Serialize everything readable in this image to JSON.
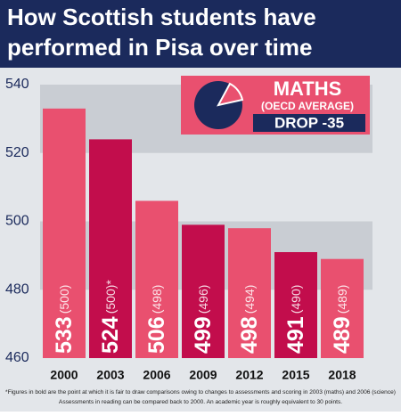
{
  "chart_data": {
    "type": "bar",
    "title": [
      "How Scottish students have",
      "performed in Pisa over time"
    ],
    "legend": {
      "subject": "MATHS",
      "note": "(OECD AVERAGE)",
      "change": "DROP -35"
    },
    "categories": [
      "2000",
      "2003",
      "2006",
      "2009",
      "2012",
      "2015",
      "2018"
    ],
    "values": [
      533,
      524,
      506,
      499,
      498,
      491,
      489
    ],
    "oecd_labels": [
      "(500)",
      "(500)*",
      "(498)",
      "(496)",
      "(494)",
      "(490)",
      "(489)"
    ],
    "colors": [
      "#e9506f",
      "#c20d4c",
      "#e9506f",
      "#c20d4c",
      "#e9506f",
      "#c20d4c",
      "#e9506f"
    ],
    "ylim": [
      460,
      540
    ],
    "yticks": [
      460,
      480,
      500,
      520,
      540
    ],
    "grid": true,
    "footnote": [
      "*Figures in bold are the point at which it is fair to draw comparisons owing to changes to assessments and scoring in 2003 (maths) and 2006 (science)",
      "Assessments in reading can be compared back to 2000. An academic year is roughly equivalent to 30 points."
    ]
  }
}
